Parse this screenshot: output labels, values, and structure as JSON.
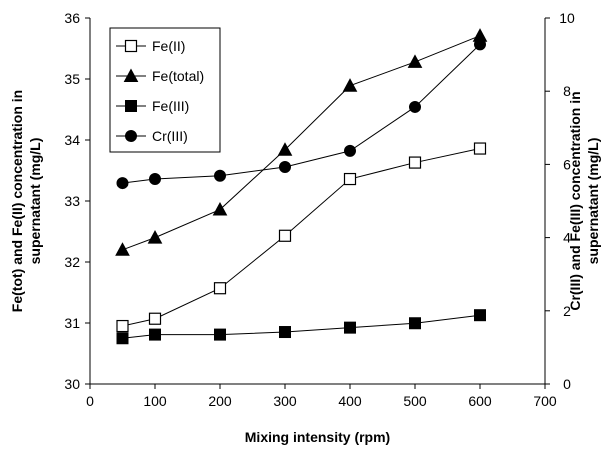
{
  "chart_data": {
    "type": "line",
    "xlabel": "Mixing intensity (rpm)",
    "ylabel_left": "Fe(tot) and Fe(II) concentration in supernatant (mg/L)",
    "ylabel_right": "Cr(III) and Fe(III) concentration in supernatant (mg/L)",
    "xlim": [
      0,
      700
    ],
    "xticks": [
      0,
      100,
      200,
      300,
      400,
      500,
      600,
      700
    ],
    "ylim_left": [
      30,
      36
    ],
    "yticks_left": [
      30,
      31,
      32,
      33,
      34,
      35,
      36
    ],
    "ylim_right": [
      0,
      10
    ],
    "yticks_right": [
      0,
      2,
      4,
      6,
      8,
      10
    ],
    "grid": false,
    "legend_position": "top-left",
    "series": [
      {
        "name": "Fe(II)",
        "axis": "left",
        "marker": "open-square",
        "x": [
          50,
          100,
          200,
          300,
          400,
          500,
          600
        ],
        "values": [
          30.95,
          31.07,
          31.57,
          32.43,
          33.36,
          33.63,
          33.86
        ]
      },
      {
        "name": "Fe(total)",
        "axis": "left",
        "marker": "filled-triangle",
        "x": [
          50,
          100,
          200,
          300,
          400,
          500,
          600
        ],
        "values": [
          32.2,
          32.4,
          32.86,
          33.84,
          34.89,
          35.28,
          35.71
        ]
      },
      {
        "name": "Fe(III)",
        "axis": "right",
        "marker": "filled-square",
        "x": [
          50,
          100,
          200,
          300,
          400,
          500,
          600
        ],
        "values": [
          1.25,
          1.35,
          1.35,
          1.42,
          1.54,
          1.66,
          1.88
        ]
      },
      {
        "name": "Cr(III)",
        "axis": "right",
        "marker": "filled-circle",
        "x": [
          50,
          100,
          200,
          300,
          400,
          500,
          600
        ],
        "values": [
          5.49,
          5.6,
          5.69,
          5.93,
          6.37,
          7.57,
          9.28
        ]
      }
    ]
  }
}
